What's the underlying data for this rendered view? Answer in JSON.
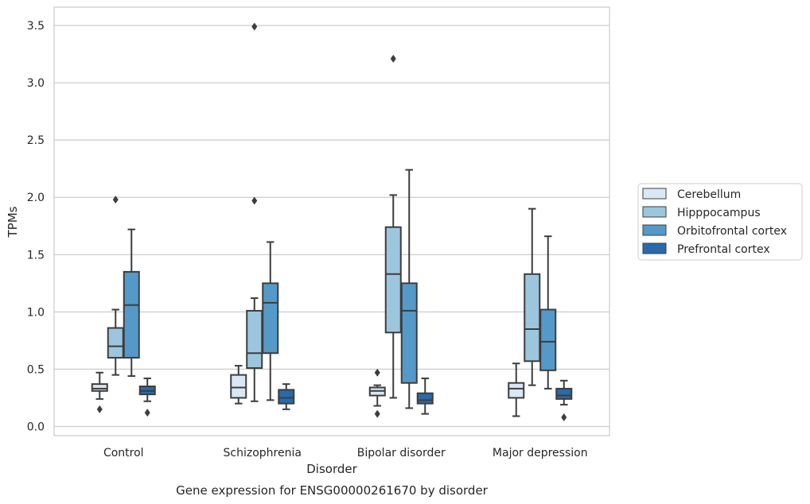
{
  "chart_data": {
    "type": "boxplot",
    "title": "Gene expression for ENSG00000261670 by disorder",
    "xlabel": "Disorder",
    "ylabel": "TPMs",
    "ylim": [
      -0.08,
      3.66
    ],
    "yticks": [
      0.0,
      0.5,
      1.0,
      1.5,
      2.0,
      2.5,
      3.0,
      3.5
    ],
    "ytick_labels": [
      "0.0",
      "0.5",
      "1.0",
      "1.5",
      "2.0",
      "2.5",
      "3.0",
      "3.5"
    ],
    "grid": "horizontal",
    "legend_position": "right",
    "categories": [
      "Control",
      "Schizophrenia",
      "Bipolar disorder",
      "Major depression"
    ],
    "series": [
      {
        "name": "Cerebellum",
        "color": "#dae8f5",
        "boxes": [
          {
            "whislo": 0.24,
            "q1": 0.31,
            "med": 0.33,
            "q3": 0.37,
            "whishi": 0.47,
            "fliers": [
              0.15
            ]
          },
          {
            "whislo": 0.2,
            "q1": 0.25,
            "med": 0.34,
            "q3": 0.45,
            "whishi": 0.53,
            "fliers": []
          },
          {
            "whislo": 0.18,
            "q1": 0.27,
            "med": 0.31,
            "q3": 0.34,
            "whishi": 0.36,
            "fliers": [
              0.47,
              0.11
            ]
          },
          {
            "whislo": 0.09,
            "q1": 0.25,
            "med": 0.33,
            "q3": 0.38,
            "whishi": 0.55,
            "fliers": []
          }
        ]
      },
      {
        "name": "Hipppocampus",
        "color": "#9cc6de",
        "boxes": [
          {
            "whislo": 0.45,
            "q1": 0.6,
            "med": 0.7,
            "q3": 0.86,
            "whishi": 1.02,
            "fliers": [
              1.98
            ]
          },
          {
            "whislo": 0.22,
            "q1": 0.51,
            "med": 0.64,
            "q3": 1.01,
            "whishi": 1.12,
            "fliers": [
              1.97,
              3.49
            ]
          },
          {
            "whislo": 0.25,
            "q1": 0.82,
            "med": 1.33,
            "q3": 1.74,
            "whishi": 2.02,
            "fliers": [
              3.21
            ]
          },
          {
            "whislo": 0.36,
            "q1": 0.57,
            "med": 0.85,
            "q3": 1.33,
            "whishi": 1.9,
            "fliers": []
          }
        ]
      },
      {
        "name": "Orbitofrontal cortex",
        "color": "#5599c8",
        "boxes": [
          {
            "whislo": 0.44,
            "q1": 0.6,
            "med": 1.06,
            "q3": 1.35,
            "whishi": 1.72,
            "fliers": []
          },
          {
            "whislo": 0.23,
            "q1": 0.64,
            "med": 1.08,
            "q3": 1.25,
            "whishi": 1.61,
            "fliers": []
          },
          {
            "whislo": 0.16,
            "q1": 0.38,
            "med": 1.01,
            "q3": 1.25,
            "whishi": 2.24,
            "fliers": []
          },
          {
            "whislo": 0.33,
            "q1": 0.49,
            "med": 0.74,
            "q3": 1.02,
            "whishi": 1.66,
            "fliers": []
          }
        ]
      },
      {
        "name": "Prefrontal cortex",
        "color": "#2a6aaa",
        "boxes": [
          {
            "whislo": 0.22,
            "q1": 0.28,
            "med": 0.31,
            "q3": 0.35,
            "whishi": 0.42,
            "fliers": [
              0.12
            ]
          },
          {
            "whislo": 0.15,
            "q1": 0.2,
            "med": 0.25,
            "q3": 0.32,
            "whishi": 0.37,
            "fliers": []
          },
          {
            "whislo": 0.11,
            "q1": 0.2,
            "med": 0.23,
            "q3": 0.29,
            "whishi": 0.42,
            "fliers": []
          },
          {
            "whislo": 0.19,
            "q1": 0.24,
            "med": 0.27,
            "q3": 0.33,
            "whishi": 0.4,
            "fliers": [
              0.08
            ]
          }
        ]
      }
    ]
  }
}
